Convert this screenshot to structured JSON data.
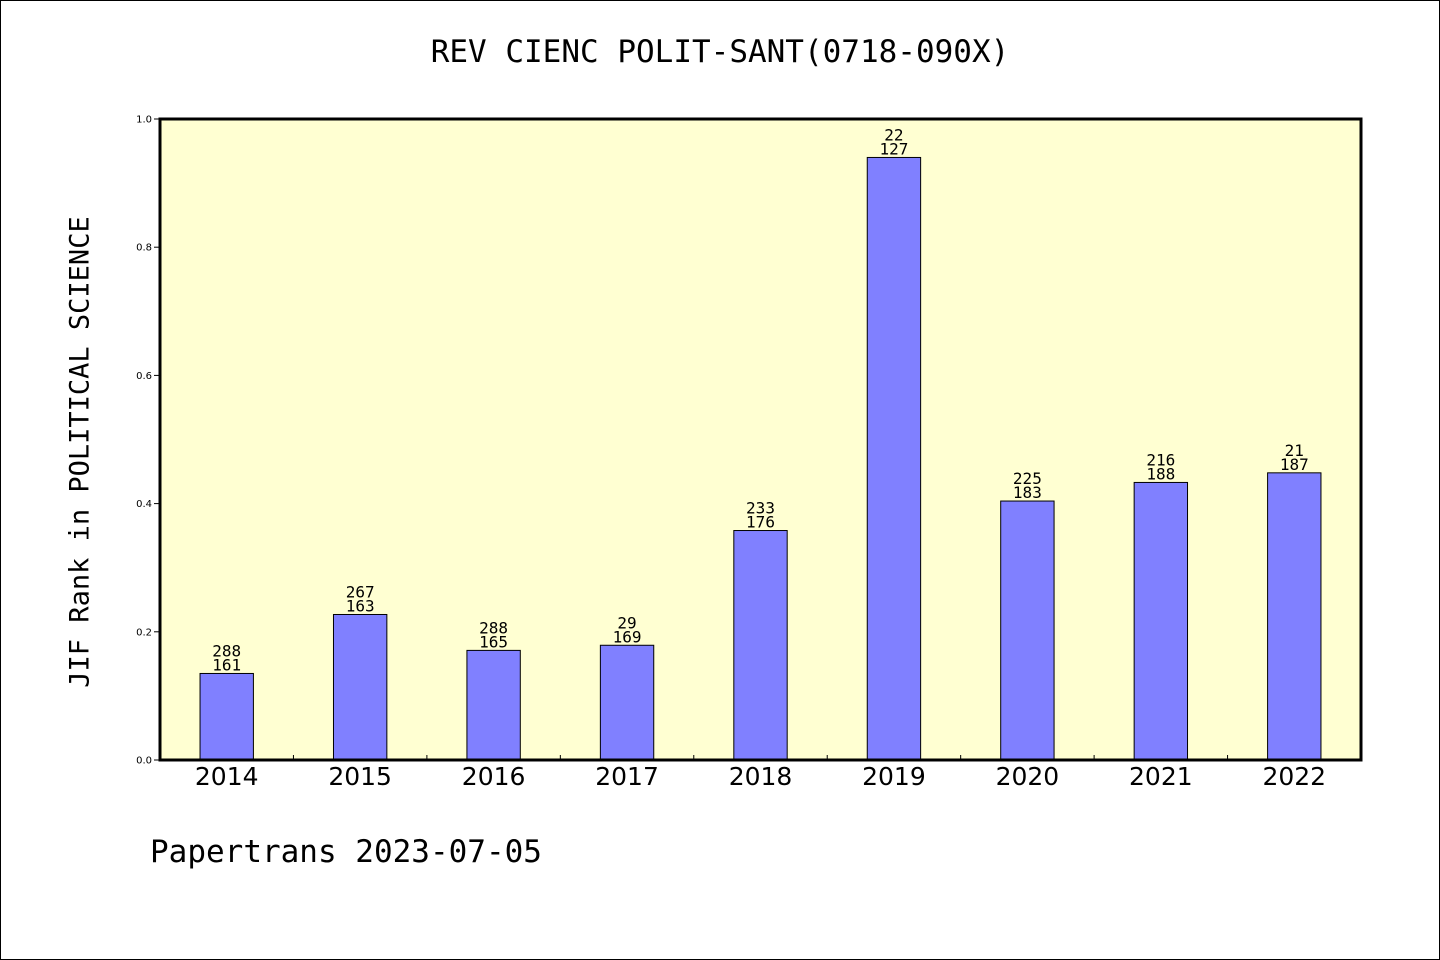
{
  "title": "REV CIENC POLIT-SANT(0718-090X)",
  "footer": "Papertrans 2023-07-05",
  "colors": {
    "plot_background": "#ffffd2",
    "bar_fill": "#8080ff",
    "axis": "#000000"
  },
  "chart_data": {
    "type": "bar",
    "title": "REV CIENC POLIT-SANT(0718-090X)",
    "xlabel": "",
    "ylabel": "JIF Rank in POLITICAL SCIENCE",
    "ylim": [
      0,
      1.0
    ],
    "yticks": [
      "0.0",
      "0.2",
      "0.4",
      "0.6",
      "0.8",
      "1.0"
    ],
    "categories": [
      "2014",
      "2015",
      "2016",
      "2017",
      "2018",
      "2019",
      "2020",
      "2021",
      "2022"
    ],
    "values": [
      0.135,
      0.227,
      0.171,
      0.179,
      0.358,
      0.94,
      0.404,
      0.433,
      0.448
    ],
    "labels_top": [
      "288",
      "267",
      "288",
      "29",
      "233",
      "22",
      "225",
      "216",
      "21"
    ],
    "labels_bottom": [
      "161",
      "163",
      "165",
      "169",
      "176",
      "127",
      "183",
      "188",
      "187"
    ],
    "grid": false,
    "legend": "none"
  }
}
